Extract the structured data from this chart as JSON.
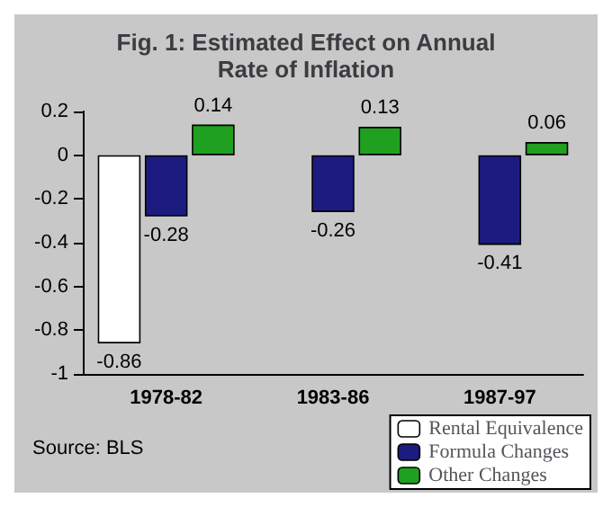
{
  "chart_data": {
    "type": "bar",
    "title": "Fig. 1: Estimated Effect on Annual\nRate of Inflation",
    "categories": [
      "1978-82",
      "1983-86",
      "1987-97"
    ],
    "series": [
      {
        "name": "Rental Equivalence",
        "color": "#ffffff",
        "values": [
          -0.86,
          null,
          null
        ]
      },
      {
        "name": "Formula Changes",
        "color": "#1c1c80",
        "values": [
          -0.28,
          -0.26,
          -0.41
        ]
      },
      {
        "name": "Other Changes",
        "color": "#20a020",
        "values": [
          0.14,
          0.13,
          0.06
        ]
      }
    ],
    "ylim": [
      -1,
      0.2
    ],
    "yticks": [
      -1,
      -0.8,
      -0.6,
      -0.4,
      -0.2,
      0,
      0.2
    ],
    "data_labels": true,
    "grid": false,
    "legend": "bottom right",
    "annotations": [
      "Source: BLS"
    ]
  }
}
